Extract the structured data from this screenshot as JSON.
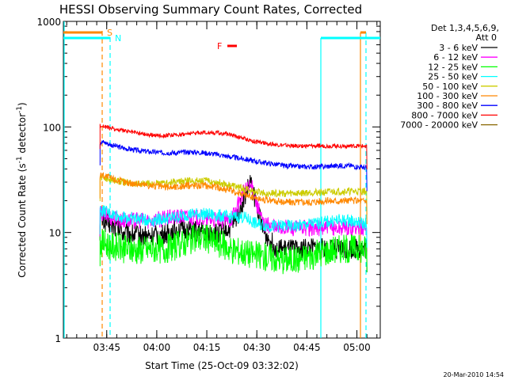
{
  "chart_data": {
    "type": "line",
    "title": "HESSI Observing Summary Count Rates, Corrected",
    "xlabel": "Start Time (25-Oct-09 03:32:02)",
    "ylabel_main": "Corrected Count Rate (s",
    "ylabel_sup1": "-1",
    "ylabel_mid": " detector",
    "ylabel_sup2": "-1",
    "ylabel_end": ")",
    "y_scale": "log",
    "ylim": [
      1,
      1000
    ],
    "xlim_minutes": [
      0,
      95
    ],
    "x_ticks": [
      {
        "m": 13,
        "label": "03:45"
      },
      {
        "m": 28,
        "label": "04:00"
      },
      {
        "m": 43,
        "label": "04:15"
      },
      {
        "m": 58,
        "label": "04:30"
      },
      {
        "m": 73,
        "label": "04:45"
      },
      {
        "m": 88,
        "label": "05:00"
      }
    ],
    "y_ticks": [
      {
        "v": 1,
        "label": "1"
      },
      {
        "v": 10,
        "label": "10"
      },
      {
        "v": 100,
        "label": "100"
      },
      {
        "v": 1000,
        "label": "1000"
      }
    ],
    "legend_header_line1": "Det 1,3,4,5,6,9,",
    "legend_header_line2": "Att 0",
    "legend_position": "right",
    "series": [
      {
        "name": "3 - 6 keV",
        "color": "#000000",
        "x": [
          11,
          12,
          14,
          18,
          22,
          26,
          30,
          34,
          38,
          42,
          46,
          50,
          52,
          54,
          56,
          58,
          60,
          64,
          68,
          72,
          76,
          80,
          84,
          88,
          91
        ],
        "y": [
          14,
          13,
          12,
          10,
          9.5,
          9.2,
          9.5,
          11,
          10.5,
          10,
          9.8,
          11,
          14,
          20,
          30,
          18,
          10,
          7,
          6.8,
          7,
          7,
          7,
          7,
          7,
          7
        ]
      },
      {
        "name": "6 - 12 keV",
        "color": "#ff00ff",
        "x": [
          11,
          12,
          14,
          18,
          22,
          26,
          30,
          34,
          38,
          42,
          46,
          50,
          52,
          54,
          56,
          57,
          58,
          60,
          64,
          68,
          72,
          76,
          80,
          84,
          88,
          91
        ],
        "y": [
          15,
          15,
          14,
          13,
          13,
          13,
          13.5,
          14,
          14,
          13.5,
          13,
          13,
          17,
          24,
          28,
          25,
          18,
          12,
          11,
          11,
          11,
          11,
          11,
          11,
          11,
          11
        ]
      },
      {
        "name": "12 - 25 keV",
        "color": "#00ff00",
        "x": [
          11,
          12,
          14,
          18,
          22,
          26,
          30,
          34,
          38,
          42,
          46,
          50,
          54,
          58,
          62,
          66,
          70,
          74,
          78,
          82,
          86,
          88,
          91
        ],
        "y": [
          8,
          8,
          7.5,
          7,
          6.8,
          7,
          7,
          7.5,
          8.5,
          9,
          8,
          7,
          6.5,
          6,
          5.8,
          5.5,
          5.5,
          6,
          6.5,
          7,
          7,
          7,
          7
        ]
      },
      {
        "name": "25 - 50 keV",
        "color": "#00ffff",
        "x": [
          11,
          12,
          14,
          18,
          22,
          26,
          30,
          34,
          38,
          42,
          46,
          50,
          54,
          58,
          62,
          66,
          70,
          74,
          78,
          82,
          86,
          88,
          91
        ],
        "y": [
          16,
          16,
          15,
          14,
          13.5,
          13,
          13.5,
          14,
          15,
          15,
          14.5,
          14,
          14,
          12,
          11.5,
          11.5,
          11.5,
          12,
          12.5,
          13,
          13,
          12.5,
          12
        ]
      },
      {
        "name": "50 - 100 keV",
        "color": "#cccc00",
        "x": [
          11,
          12,
          14,
          18,
          22,
          26,
          30,
          34,
          38,
          42,
          46,
          50,
          54,
          58,
          62,
          66,
          70,
          74,
          78,
          82,
          86,
          88,
          91
        ],
        "y": [
          33,
          33,
          32,
          30,
          29,
          29,
          29,
          30,
          31,
          31,
          30,
          28,
          26,
          24,
          23.5,
          23.5,
          23.5,
          24,
          24,
          24.5,
          24.5,
          24.5,
          24.5
        ]
      },
      {
        "name": "100 - 300 keV",
        "color": "#ff8800",
        "x": [
          11,
          12,
          14,
          18,
          22,
          26,
          30,
          34,
          38,
          42,
          46,
          50,
          54,
          58,
          62,
          66,
          70,
          74,
          78,
          82,
          86,
          88,
          91
        ],
        "y": [
          35,
          35,
          33,
          30,
          29,
          28,
          27,
          27,
          28,
          28,
          27,
          25,
          23,
          21,
          20,
          19.5,
          19.5,
          19.5,
          20,
          20,
          20,
          20,
          20
        ]
      },
      {
        "name": "300 - 800 keV",
        "color": "#0000ff",
        "x": [
          11,
          12,
          14,
          18,
          22,
          26,
          30,
          34,
          38,
          42,
          46,
          50,
          54,
          58,
          62,
          66,
          70,
          74,
          78,
          82,
          86,
          88,
          91
        ],
        "y": [
          72,
          72,
          68,
          63,
          60,
          58,
          57,
          57,
          58,
          57,
          55,
          52,
          50,
          47,
          45,
          43,
          42,
          42,
          42,
          43,
          43,
          42,
          41
        ]
      },
      {
        "name": "800 - 7000 keV",
        "color": "#ff0000",
        "x": [
          11,
          12,
          14,
          18,
          22,
          26,
          30,
          34,
          38,
          42,
          46,
          50,
          54,
          58,
          62,
          66,
          70,
          74,
          78,
          82,
          86,
          88,
          91
        ],
        "y": [
          103,
          102,
          97,
          92,
          88,
          84,
          83,
          84,
          87,
          89,
          88,
          85,
          78,
          72,
          69,
          67,
          66,
          66,
          66,
          66,
          66,
          66,
          66
        ]
      },
      {
        "name": "7000 - 20000 keV",
        "color": "#886600",
        "x": [],
        "y": []
      }
    ],
    "markers": {
      "S_label": "S",
      "N_label": "N",
      "F_label": "F",
      "S_color": "#ff8800",
      "N_color": "#00ffff",
      "F_color": "#ff0000"
    },
    "footer_timestamp": "20-Mar-2010 14:54"
  }
}
